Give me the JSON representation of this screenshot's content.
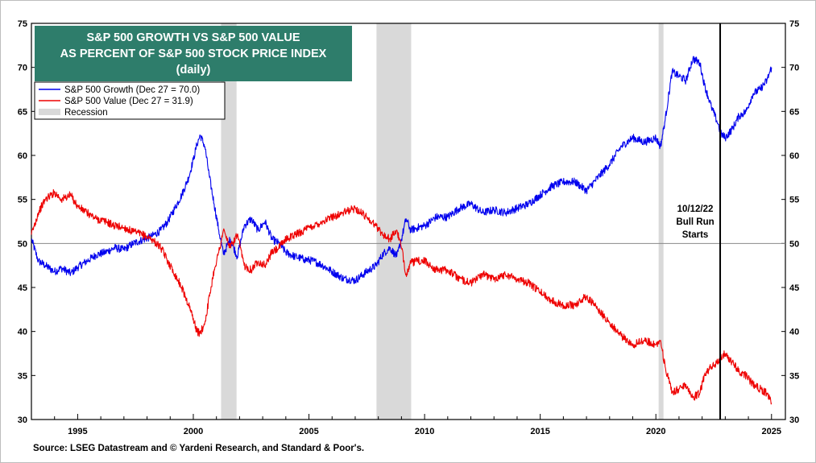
{
  "chart_data": {
    "type": "line",
    "title_lines": [
      "S&P 500 GROWTH VS S&P 500 VALUE",
      "AS PERCENT OF S&P 500 STOCK PRICE INDEX",
      "(daily)"
    ],
    "xlabel": "",
    "ylabel": "",
    "xlim": [
      1993.0,
      2025.6
    ],
    "ylim": [
      30,
      75
    ],
    "x_ticks": [
      1995,
      2000,
      2005,
      2010,
      2015,
      2020,
      2025
    ],
    "y_ticks": [
      30,
      35,
      40,
      45,
      50,
      55,
      60,
      65,
      70,
      75
    ],
    "reference_line": 50,
    "legend": {
      "placement": "top-left",
      "entries": [
        "S&P 500 Growth (Dec 27 = 70.0)",
        "S&P 500 Value (Dec 27 = 31.9)",
        "Recession"
      ]
    },
    "recessions": [
      [
        2001.2,
        2001.87
      ],
      [
        2007.92,
        2009.42
      ],
      [
        2020.12,
        2020.33
      ]
    ],
    "event": {
      "x": 2022.78,
      "label_lines": [
        "10/12/22",
        "Bull Run",
        "Starts"
      ]
    },
    "series": [
      {
        "name": "S&P 500 Growth",
        "color": "#0000ee",
        "x": [
          1993.0,
          1993.3,
          1993.6,
          1994.0,
          1994.3,
          1994.7,
          1995.0,
          1995.4,
          1995.8,
          1996.2,
          1996.6,
          1997.0,
          1997.4,
          1997.8,
          1998.2,
          1998.6,
          1998.9,
          1999.2,
          1999.5,
          1999.8,
          2000.0,
          2000.15,
          2000.3,
          2000.5,
          2000.7,
          2000.9,
          2001.1,
          2001.3,
          2001.6,
          2001.9,
          2002.2,
          2002.5,
          2002.8,
          2003.1,
          2003.4,
          2003.7,
          2004.0,
          2004.4,
          2004.8,
          2005.2,
          2005.6,
          2006.0,
          2006.5,
          2007.0,
          2007.5,
          2007.9,
          2008.2,
          2008.5,
          2008.8,
          2009.0,
          2009.2,
          2009.4,
          2009.7,
          2010.0,
          2010.5,
          2011.0,
          2011.5,
          2012.0,
          2012.5,
          2013.0,
          2013.5,
          2014.0,
          2014.5,
          2015.0,
          2015.5,
          2016.0,
          2016.5,
          2017.0,
          2017.5,
          2018.0,
          2018.5,
          2019.0,
          2019.5,
          2020.0,
          2020.2,
          2020.4,
          2020.7,
          2021.0,
          2021.3,
          2021.6,
          2021.9,
          2022.1,
          2022.4,
          2022.7,
          2022.8,
          2023.0,
          2023.3,
          2023.6,
          2023.9,
          2024.2,
          2024.5,
          2024.8,
          2025.0
        ],
        "values": [
          50.5,
          48.0,
          47.5,
          46.8,
          47.2,
          46.6,
          47.3,
          48.0,
          48.7,
          49.0,
          49.5,
          49.3,
          50.0,
          50.4,
          50.8,
          51.5,
          52.5,
          54.0,
          55.5,
          57.5,
          59.5,
          61.2,
          62.3,
          61.0,
          57.5,
          54.5,
          51.5,
          48.8,
          50.5,
          48.5,
          52.0,
          52.8,
          51.5,
          52.5,
          50.5,
          50.0,
          49.0,
          48.5,
          48.2,
          48.0,
          47.5,
          46.8,
          46.0,
          45.8,
          46.8,
          47.5,
          48.8,
          49.5,
          48.5,
          50.5,
          52.8,
          51.5,
          51.8,
          52.0,
          53.0,
          53.0,
          54.0,
          54.5,
          53.5,
          53.8,
          53.5,
          54.0,
          54.5,
          55.5,
          56.5,
          57.0,
          57.0,
          56.0,
          57.5,
          59.0,
          61.0,
          62.0,
          61.5,
          62.0,
          61.0,
          64.0,
          69.5,
          69.0,
          68.5,
          71.0,
          70.5,
          68.0,
          65.5,
          63.5,
          62.5,
          62.0,
          63.0,
          64.5,
          65.0,
          67.0,
          67.5,
          68.5,
          70.0
        ]
      },
      {
        "name": "S&P 500 Value",
        "color": "#ee0000",
        "x": [
          1993.0,
          1993.3,
          1993.6,
          1994.0,
          1994.3,
          1994.7,
          1995.0,
          1995.4,
          1995.8,
          1996.2,
          1996.6,
          1997.0,
          1997.4,
          1997.8,
          1998.2,
          1998.6,
          1998.9,
          1999.2,
          1999.5,
          1999.8,
          2000.0,
          2000.15,
          2000.3,
          2000.5,
          2000.7,
          2000.9,
          2001.1,
          2001.3,
          2001.6,
          2001.9,
          2002.2,
          2002.5,
          2002.8,
          2003.1,
          2003.4,
          2003.7,
          2004.0,
          2004.4,
          2004.8,
          2005.2,
          2005.6,
          2006.0,
          2006.5,
          2007.0,
          2007.5,
          2007.9,
          2008.2,
          2008.5,
          2008.8,
          2009.0,
          2009.2,
          2009.4,
          2009.7,
          2010.0,
          2010.5,
          2011.0,
          2011.5,
          2012.0,
          2012.5,
          2013.0,
          2013.5,
          2014.0,
          2014.5,
          2015.0,
          2015.5,
          2016.0,
          2016.5,
          2017.0,
          2017.5,
          2018.0,
          2018.5,
          2019.0,
          2019.5,
          2020.0,
          2020.2,
          2020.4,
          2020.7,
          2021.0,
          2021.3,
          2021.6,
          2021.9,
          2022.1,
          2022.4,
          2022.7,
          2022.8,
          2023.0,
          2023.3,
          2023.6,
          2023.9,
          2024.2,
          2024.5,
          2024.8,
          2025.0
        ],
        "values": [
          51.0,
          53.5,
          55.0,
          55.8,
          55.0,
          55.5,
          54.2,
          53.5,
          52.8,
          52.5,
          52.0,
          51.8,
          51.3,
          51.0,
          50.5,
          49.5,
          48.0,
          46.5,
          45.0,
          43.0,
          41.5,
          40.0,
          39.8,
          41.0,
          44.0,
          47.0,
          49.0,
          51.5,
          49.5,
          51.0,
          47.5,
          47.0,
          48.0,
          47.5,
          49.0,
          49.5,
          50.5,
          51.0,
          51.5,
          52.0,
          52.5,
          53.0,
          53.5,
          54.0,
          53.0,
          52.0,
          51.0,
          50.5,
          51.5,
          49.5,
          46.5,
          47.8,
          48.0,
          48.0,
          47.0,
          47.0,
          46.0,
          45.5,
          46.5,
          46.0,
          46.5,
          46.0,
          45.5,
          44.5,
          43.5,
          43.0,
          43.0,
          44.0,
          42.5,
          41.0,
          39.5,
          38.5,
          39.0,
          38.5,
          39.0,
          36.0,
          33.0,
          33.5,
          34.0,
          32.5,
          33.0,
          35.0,
          36.0,
          36.5,
          37.0,
          37.5,
          36.5,
          35.5,
          35.0,
          34.0,
          33.5,
          33.0,
          31.9
        ]
      }
    ]
  },
  "source": "Source: LSEG Datastream and © Yardeni Research, and Standard & Poor's.",
  "colors": {
    "title_box": "#2e7d6b",
    "recession_shade": "#d9d9d9",
    "growth": "#0000ee",
    "value": "#ee0000"
  }
}
